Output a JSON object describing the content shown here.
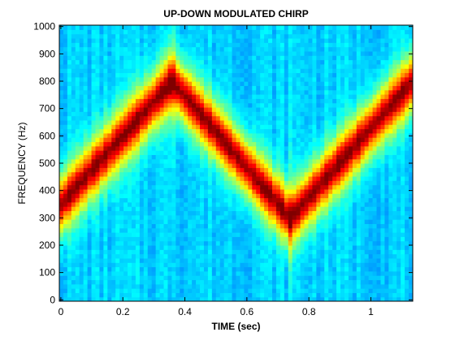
{
  "chart_data": {
    "type": "heatmap",
    "title": "UP-DOWN MODULATED CHIRP",
    "xlabel": "TIME (sec)",
    "ylabel": "FREQUENCY (Hz)",
    "xlim": [
      -0.005,
      1.135
    ],
    "ylim": [
      -5,
      1005
    ],
    "x_ticks": [
      0,
      0.2,
      0.4,
      0.6,
      0.8,
      1
    ],
    "x_tick_labels": [
      "0",
      "0.2",
      "0.4",
      "0.6",
      "0.8",
      "1"
    ],
    "y_ticks": [
      0,
      100,
      200,
      300,
      400,
      500,
      600,
      700,
      800,
      900,
      1000
    ],
    "y_tick_labels": [
      "0",
      "100",
      "200",
      "300",
      "400",
      "500",
      "600",
      "700",
      "800",
      "900",
      "1000"
    ],
    "colormap": "jet",
    "grid": false,
    "ridge": [
      {
        "time": 0,
        "frequency": 350
      },
      {
        "time": 0.36,
        "frequency": 800
      },
      {
        "time": 0.74,
        "frequency": 300
      },
      {
        "time": 1.135,
        "frequency": 800
      }
    ]
  }
}
